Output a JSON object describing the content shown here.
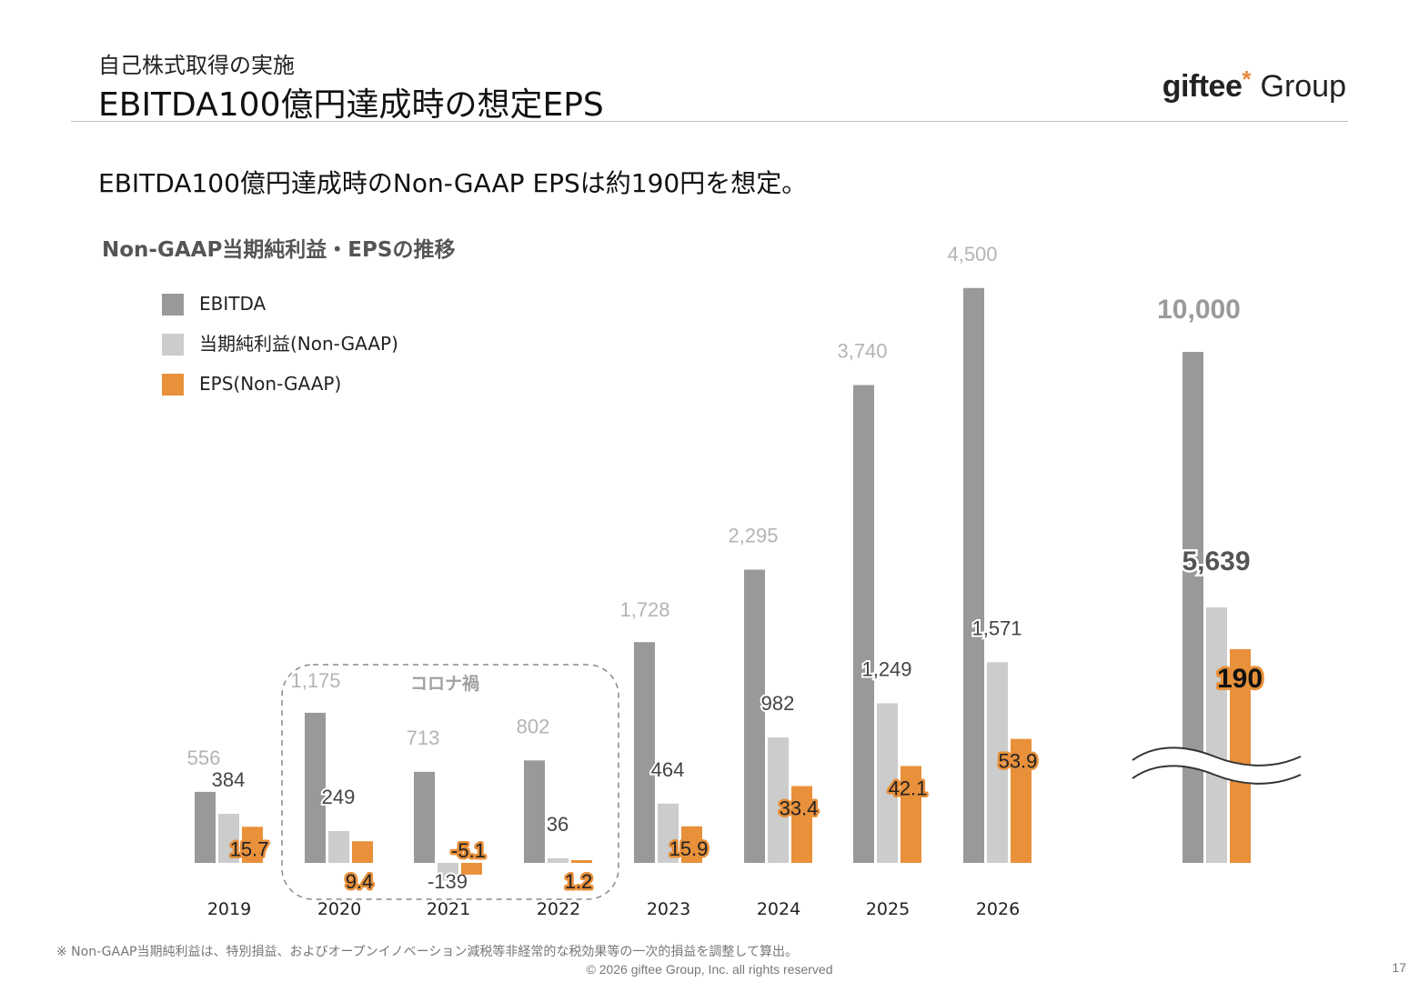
{
  "header": {
    "subtitle": "自己株式取得の実施",
    "title": "EBITDA100億円達成時の想定EPS",
    "logo_brand": "giftee",
    "logo_asterisk": "*",
    "logo_group": "Group"
  },
  "headline": "EBITDA100億円達成時のNon-GAAP EPSは約190円を想定。",
  "chart_title": "Non-GAAP当期純利益・EPSの推移",
  "footnote": "※ Non-GAAP当期純利益は、特別損益、およびオープンイノベーション減税等非経常的な税効果等の一次的損益を調整して算出。",
  "copyright": "© 2026 giftee Group, Inc. all rights reserved",
  "page_number": "17",
  "chart_data": {
    "type": "bar",
    "categories": [
      "2019",
      "2020",
      "2021",
      "2022",
      "2023",
      "2024",
      "2025",
      "2026",
      ""
    ],
    "series": [
      {
        "name": "EBITDA",
        "values": [
          556,
          1175,
          713,
          802,
          1728,
          2295,
          3740,
          4500,
          10000
        ],
        "labels": [
          "556",
          "1,175",
          "713",
          "802",
          "1,728",
          "2,295",
          "3,740",
          "4,500",
          "10,000"
        ]
      },
      {
        "name": "当期純利益(Non-GAAP)",
        "values": [
          384,
          249,
          -139,
          36,
          464,
          982,
          1249,
          1571,
          5639
        ],
        "labels": [
          "384",
          "249",
          "-139",
          "36",
          "464",
          "982",
          "1,249",
          "1,571",
          "5,639"
        ]
      },
      {
        "name": "EPS(Non-GAAP)",
        "values": [
          15.7,
          9.4,
          -5.1,
          1.2,
          15.9,
          33.4,
          42.1,
          53.9,
          190
        ],
        "labels": [
          "15.7",
          "9.4",
          "-5.1",
          "1.2",
          "15.9",
          "33.4",
          "42.1",
          "53.9",
          "190"
        ]
      }
    ],
    "colors": {
      "EBITDA": "#999999",
      "当期純利益(Non-GAAP)": "#cccccc",
      "EPS(Non-GAAP)": "#e8903a"
    },
    "annotation": "コロナ禍",
    "annotation_range": [
      "2020",
      "2022"
    ],
    "axis_break": true,
    "legend_position": "top-left"
  }
}
